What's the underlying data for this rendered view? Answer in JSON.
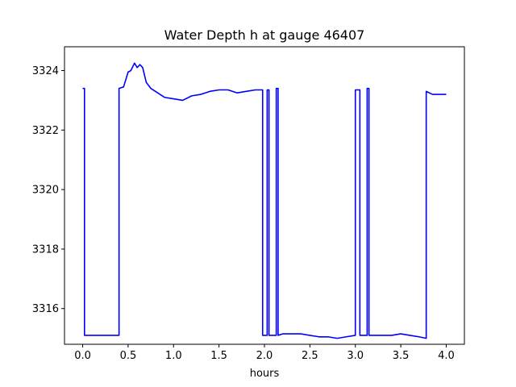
{
  "chart_data": {
    "type": "line",
    "title": "Water Depth h at gauge 46407",
    "xlabel": "hours",
    "ylabel": "",
    "xlim": [
      -0.2,
      4.2
    ],
    "ylim": [
      3314.8,
      3324.8
    ],
    "xticks": [
      0.0,
      0.5,
      1.0,
      1.5,
      2.0,
      2.5,
      3.0,
      3.5,
      4.0
    ],
    "xtick_labels": [
      "0.0",
      "0.5",
      "1.0",
      "1.5",
      "2.0",
      "2.5",
      "3.0",
      "3.5",
      "4.0"
    ],
    "yticks": [
      3316,
      3318,
      3320,
      3322,
      3324
    ],
    "ytick_labels": [
      "3316",
      "3318",
      "3320",
      "3322",
      "3324"
    ],
    "grid": false,
    "series": [
      {
        "color": "#0000ff",
        "x": [
          0.0,
          0.02,
          0.02,
          0.2,
          0.4,
          0.4,
          0.45,
          0.5,
          0.53,
          0.57,
          0.6,
          0.63,
          0.66,
          0.7,
          0.75,
          0.8,
          0.9,
          1.0,
          1.1,
          1.2,
          1.3,
          1.4,
          1.5,
          1.6,
          1.65,
          1.7,
          1.8,
          1.9,
          1.98,
          1.98,
          2.03,
          2.03,
          2.05,
          2.05,
          2.1,
          2.13,
          2.13,
          2.15,
          2.15,
          2.2,
          2.3,
          2.4,
          2.5,
          2.6,
          2.7,
          2.8,
          2.9,
          3.0,
          3.0,
          3.05,
          3.05,
          3.13,
          3.13,
          3.15,
          3.15,
          3.2,
          3.3,
          3.4,
          3.5,
          3.6,
          3.7,
          3.78,
          3.78,
          3.85,
          3.9,
          4.0
        ],
        "y": [
          3323.4,
          3323.4,
          3315.1,
          3315.1,
          3315.1,
          3323.4,
          3323.45,
          3323.95,
          3324.0,
          3324.25,
          3324.1,
          3324.2,
          3324.1,
          3323.6,
          3323.4,
          3323.3,
          3323.1,
          3323.05,
          3323.0,
          3323.15,
          3323.2,
          3323.3,
          3323.35,
          3323.35,
          3323.3,
          3323.25,
          3323.3,
          3323.35,
          3323.35,
          3315.1,
          3315.1,
          3323.35,
          3323.35,
          3315.1,
          3315.1,
          3315.1,
          3323.4,
          3323.4,
          3315.1,
          3315.15,
          3315.15,
          3315.15,
          3315.1,
          3315.05,
          3315.05,
          3315.0,
          3315.05,
          3315.1,
          3323.35,
          3323.35,
          3315.1,
          3315.1,
          3323.4,
          3323.4,
          3315.1,
          3315.1,
          3315.1,
          3315.1,
          3315.15,
          3315.1,
          3315.05,
          3315.0,
          3323.3,
          3323.2,
          3323.2,
          3323.2
        ]
      }
    ]
  }
}
